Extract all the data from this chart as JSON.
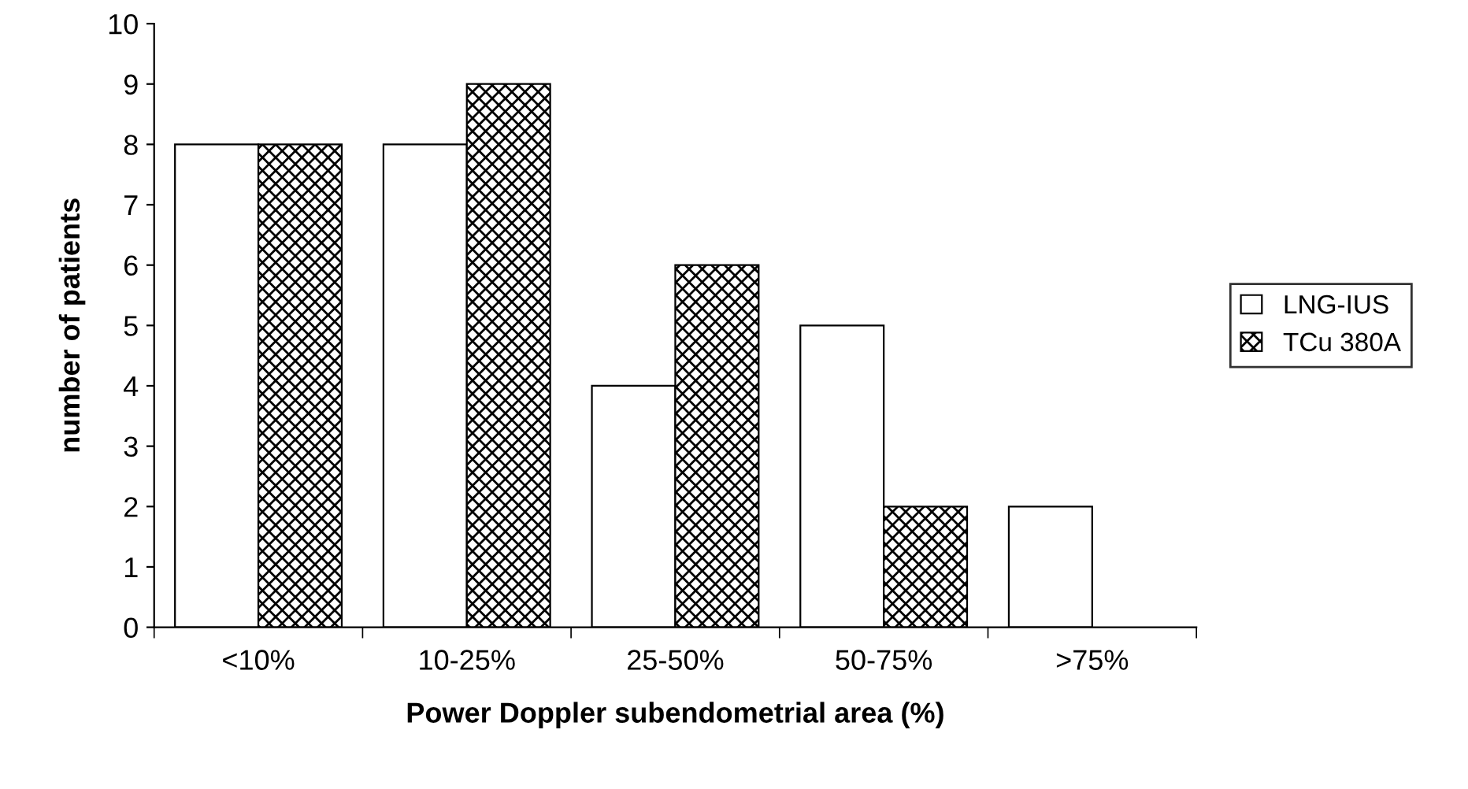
{
  "chart_data": {
    "type": "bar",
    "xlabel": "Power Doppler subendometrial area (%)",
    "ylabel": "number of patients",
    "categories": [
      "<10%",
      "10-25%",
      "25-50%",
      "50-75%",
      ">75%"
    ],
    "series": [
      {
        "name": "LNG-IUS",
        "color": "#ffffff",
        "values": [
          8,
          8,
          4,
          5,
          2
        ]
      },
      {
        "name": "TCu 380A",
        "color": "#000000",
        "values": [
          8,
          9,
          6,
          2,
          0
        ]
      }
    ],
    "ylim": [
      0,
      10
    ],
    "yticks": [
      0,
      1,
      2,
      3,
      4,
      5,
      6,
      7,
      8,
      9,
      10
    ],
    "legend": "right"
  }
}
